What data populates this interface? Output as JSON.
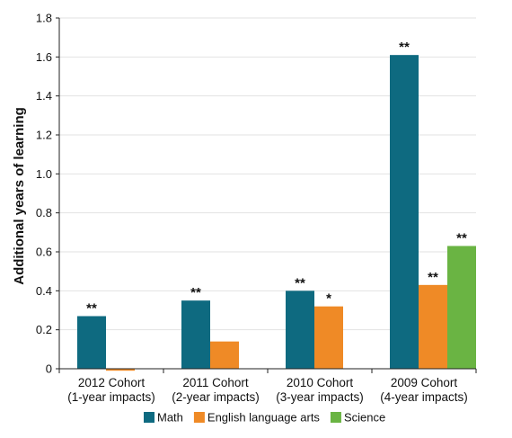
{
  "chart_data": {
    "type": "bar",
    "ylabel": "Additional years of learning",
    "xlabel": "",
    "ylim": [
      0,
      1.8
    ],
    "yticks": [
      0,
      0.2,
      0.4,
      0.6,
      0.8,
      1.0,
      1.2,
      1.4,
      1.6,
      1.8
    ],
    "ytick_labels": [
      "0",
      "0.2",
      "0.4",
      "0.6",
      "0.8",
      "1.0",
      "1.2",
      "1.4",
      "1.6",
      "1.8"
    ],
    "grid": "horizontal",
    "legend_placement": "bottom",
    "categories": [
      {
        "line1": "2012 Cohort",
        "line2": "(1-year impacts)"
      },
      {
        "line1": "2011 Cohort",
        "line2": "(2-year impacts)"
      },
      {
        "line1": "2010 Cohort",
        "line2": "(3-year impacts)"
      },
      {
        "line1": "2009 Cohort",
        "line2": "(4-year impacts)"
      }
    ],
    "series": [
      {
        "name": "Math",
        "color": "#0e6a80",
        "values": [
          0.27,
          0.35,
          0.4,
          1.61
        ],
        "significance": [
          "**",
          "**",
          "**",
          "**"
        ]
      },
      {
        "name": "English language arts",
        "color": "#ef8a26",
        "values": [
          -0.01,
          0.14,
          0.32,
          0.43
        ],
        "significance": [
          "",
          "",
          "*",
          "**"
        ]
      },
      {
        "name": "Science",
        "color": "#6ab443",
        "values": [
          null,
          null,
          null,
          0.63
        ],
        "significance": [
          "",
          "",
          "",
          "**"
        ]
      }
    ]
  }
}
